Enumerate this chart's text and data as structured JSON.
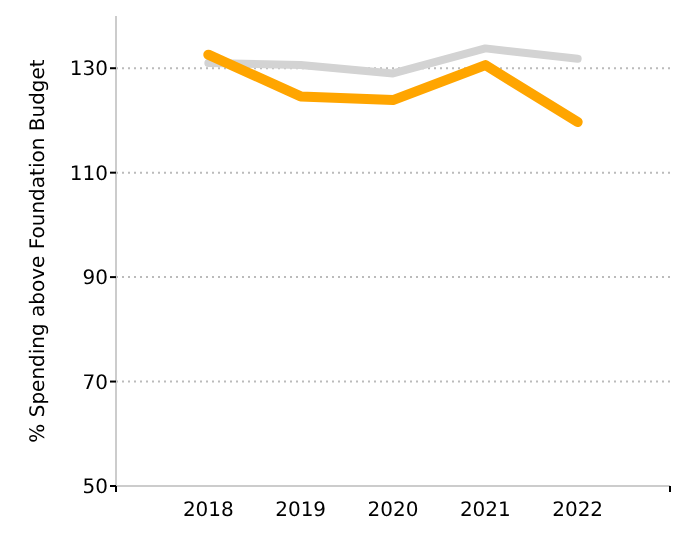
{
  "chart_data": {
    "type": "line",
    "ylabel": "% Spending above Foundation Budget",
    "categories": [
      "2018",
      "2019",
      "2020",
      "2021",
      "2022"
    ],
    "series": [
      {
        "color": "#d3d3d3",
        "values": [
          131,
          130.6,
          129,
          133.8,
          131.8
        ]
      },
      {
        "color": "#ffa500",
        "values": [
          132.6,
          124.6,
          123.9,
          130.6,
          119.7
        ]
      }
    ],
    "ylim": [
      50,
      140
    ],
    "yticks": [
      50,
      70,
      90,
      110,
      130
    ],
    "grid": "y"
  }
}
